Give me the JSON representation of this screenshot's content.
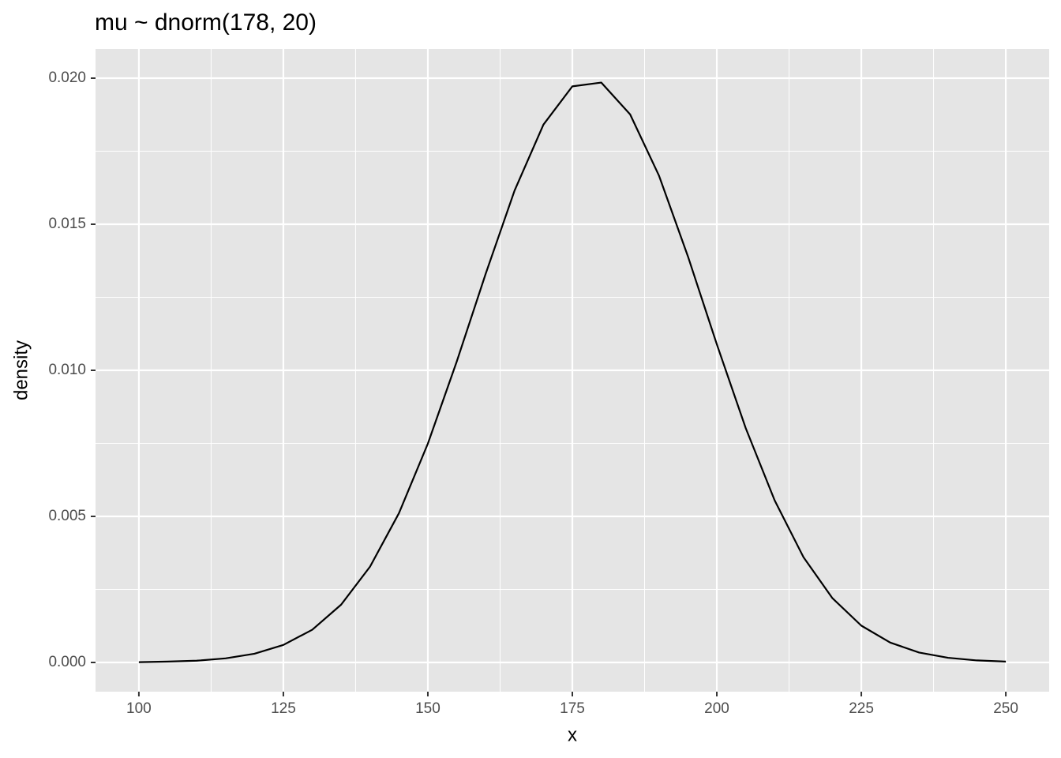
{
  "chart_data": {
    "type": "line",
    "title": "mu ~ dnorm(178, 20)",
    "x_label": "x",
    "y_label": "density",
    "x": [
      100,
      105,
      110,
      115,
      120,
      125,
      130,
      135,
      140,
      145,
      150,
      155,
      160,
      165,
      170,
      175,
      180,
      185,
      190,
      195,
      200,
      205,
      210,
      215,
      220,
      225,
      230,
      235,
      240,
      245,
      250
    ],
    "series": [
      {
        "color": "#000000",
        "values": [
          1e-05,
          3e-05,
          6e-05,
          0.00014,
          0.0003,
          0.0006,
          0.00112,
          0.00198,
          0.00328,
          0.00511,
          0.00749,
          0.0103,
          0.0133,
          0.01615,
          0.01841,
          0.01972,
          0.01985,
          0.01876,
          0.01666,
          0.0139,
          0.01089,
          0.00802,
          0.00555,
          0.0036,
          0.0022,
          0.00126,
          0.00068,
          0.00034,
          0.00016,
          7e-05,
          3e-05
        ]
      }
    ],
    "xlim": [
      92.5,
      257.5
    ],
    "ylim": [
      -0.001,
      0.021
    ],
    "xticks": [
      100,
      125,
      150,
      175,
      200,
      225,
      250
    ],
    "yticks": [
      {
        "value": 0,
        "label": "0.000"
      },
      {
        "value": 0.005,
        "label": "0.005"
      },
      {
        "value": 0.01,
        "label": "0.010"
      },
      {
        "value": 0.015,
        "label": "0.015"
      },
      {
        "value": 0.02,
        "label": "0.020"
      }
    ],
    "x_minor_ticks": [
      112.5,
      137.5,
      162.5,
      187.5,
      212.5,
      237.5
    ],
    "y_minor_ticks": [
      0.0025,
      0.0075,
      0.0125,
      0.0175
    ],
    "grid": true,
    "panel_color": "#e5e5e5",
    "grid_color": "#ffffff"
  }
}
